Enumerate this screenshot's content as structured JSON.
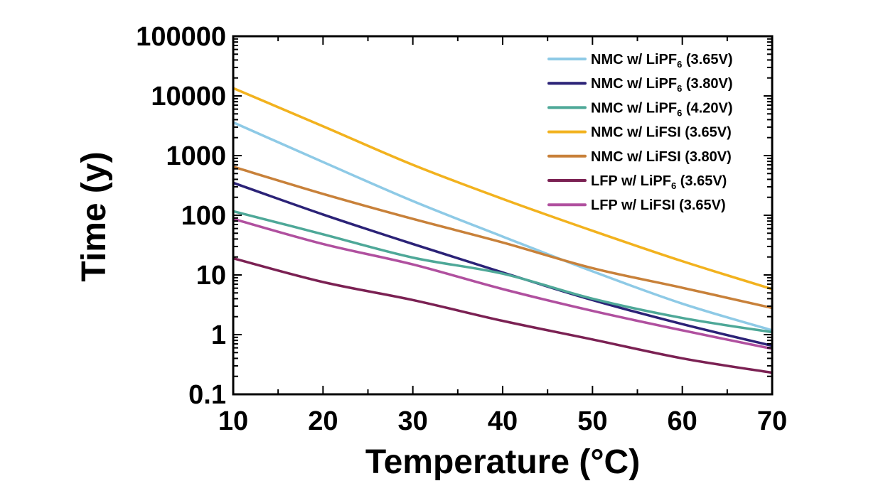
{
  "chart_data": {
    "type": "line",
    "title": "",
    "xlabel": "Temperature (°C)",
    "ylabel": "Time (y)",
    "xlim": [
      10,
      70
    ],
    "ylim": [
      0.1,
      100000
    ],
    "yscale": "log",
    "grid": false,
    "legend_position": "top-right",
    "x_ticks": [
      10,
      20,
      30,
      40,
      50,
      60,
      70
    ],
    "x_tick_labels": [
      "10",
      "20",
      "30",
      "40",
      "50",
      "60",
      "70"
    ],
    "y_ticks": [
      0.1,
      1,
      10,
      100,
      1000,
      10000,
      100000
    ],
    "y_tick_labels": [
      "0.1",
      "1",
      "10",
      "100",
      "1000",
      "10000",
      "100000"
    ],
    "x": [
      10,
      20,
      30,
      40,
      50,
      60,
      70
    ],
    "series": [
      {
        "name": "NMC w/ LiPF6 (3.65V)",
        "label_main": "NMC w/ LiPF",
        "label_sub": "6",
        "label_tail": " (3.65V)",
        "color": "#8ecae6",
        "values": [
          3600,
          780,
          173,
          44,
          11.5,
          3.3,
          1.18
        ]
      },
      {
        "name": "NMC w/ LiPF6 (3.80V)",
        "label_main": "NMC w/ LiPF",
        "label_sub": "6",
        "label_tail": " (3.80V)",
        "color": "#2b2277",
        "values": [
          350,
          103,
          33,
          11,
          3.8,
          1.5,
          0.65
        ]
      },
      {
        "name": "NMC w/ LiPF6 (4.20V)",
        "label_main": "NMC w/ LiPF",
        "label_sub": "6",
        "label_tail": " (4.20V)",
        "color": "#4ea898",
        "values": [
          117,
          48,
          19.5,
          10.5,
          4.0,
          1.9,
          1.1
        ]
      },
      {
        "name": "NMC w/ LiFSI (3.65V)",
        "label_main": "NMC w/ LiFSI (3.65V)",
        "label_sub": "",
        "label_tail": "",
        "color": "#f2b21e",
        "values": [
          13500,
          3100,
          700,
          188,
          55,
          17,
          5.8
        ]
      },
      {
        "name": "NMC w/ LiFSI (3.80V)",
        "label_main": "NMC w/ LiFSI (3.80V)",
        "label_sub": "",
        "label_tail": "",
        "color": "#c8813a",
        "values": [
          650,
          228,
          87,
          35,
          13,
          6.1,
          2.8
        ]
      },
      {
        "name": "LFP w/ LiPF6 (3.65V)",
        "label_main": "LFP w/ LiPF",
        "label_sub": "6",
        "label_tail": " (3.65V)",
        "color": "#7b2153",
        "values": [
          19,
          7.6,
          3.8,
          1.7,
          0.83,
          0.4,
          0.23
        ]
      },
      {
        "name": "LFP w/ LiFSI (3.65V)",
        "label_main": "LFP w/ LiFSI (3.65V)",
        "label_sub": "",
        "label_tail": "",
        "color": "#b0509f",
        "values": [
          87,
          33,
          15,
          5.8,
          2.5,
          1.18,
          0.58
        ]
      }
    ]
  }
}
